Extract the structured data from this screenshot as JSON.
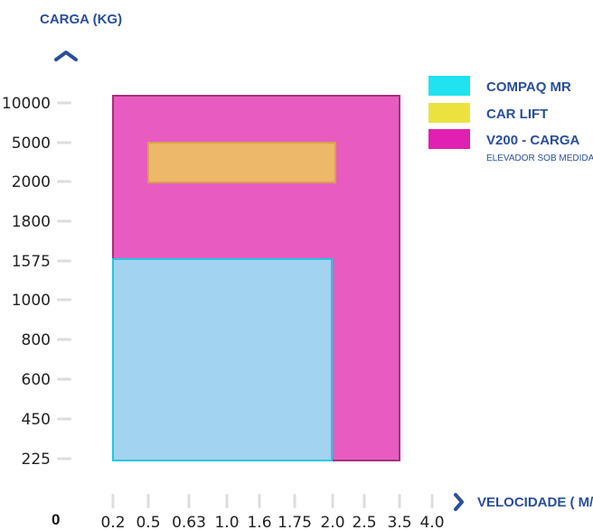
{
  "chart_data": {
    "type": "area",
    "ylabel": "CARGA (KG)",
    "xlabel": "VELOCIDADE ( M/S )",
    "origin_label": "0",
    "y_categories": [
      "225",
      "450",
      "600",
      "800",
      "1000",
      "1575",
      "1800",
      "2000",
      "5000",
      "10000"
    ],
    "x_categories": [
      "0.2",
      "0.5",
      "0.63",
      "1.0",
      "1.6",
      "1.75",
      "2.0",
      "2.5",
      "3.5",
      "4.0"
    ],
    "series": [
      {
        "name": "V200 - CARGA",
        "subtitle": "ELEVADOR SOB MEDIDA",
        "x_range": [
          "0.2",
          "3.5"
        ],
        "y_range": [
          "225",
          "10000"
        ],
        "color": "#e85bc1",
        "border": "#a5307a"
      },
      {
        "name": "CAR LIFT",
        "x_range": [
          "0.5",
          "2.0"
        ],
        "y_range": [
          "2000",
          "5000"
        ],
        "color": "#edb86a",
        "border": "#d9a24b"
      },
      {
        "name": "COMPAQ MR",
        "x_range": [
          "0.2",
          "2.0"
        ],
        "y_range": [
          "225",
          "1575"
        ],
        "color": "#a2d3ef",
        "border": "#1ec9e0"
      }
    ],
    "legend": {
      "position": "top-right",
      "items": [
        {
          "name": "COMPAQ MR",
          "color": "#1fe3ee"
        },
        {
          "name": "CAR LIFT",
          "color": "#ebe23f"
        },
        {
          "name": "V200 - CARGA",
          "color": "#e020b0",
          "subtitle": "ELEVADOR SOB MEDIDA"
        }
      ]
    },
    "grid": false
  },
  "colors": {
    "axis_title": "#2a4f9a",
    "arrow": "#2a4f9a",
    "tick_mark": "#dddddd"
  }
}
